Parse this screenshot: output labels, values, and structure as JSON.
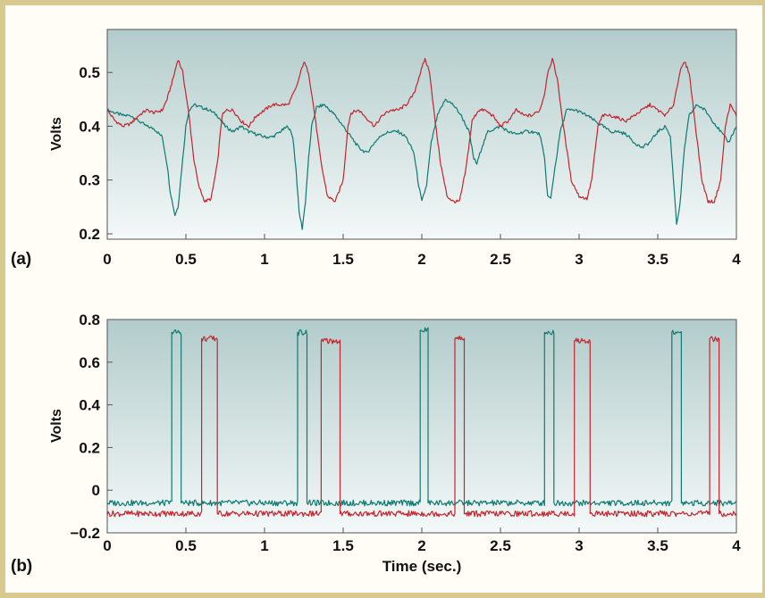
{
  "colors": {
    "teal": "#0e7a72",
    "red": "#c4252e",
    "frame": "#d8c98f",
    "plot_bg_top": "#b2cccb",
    "plot_bg_bottom": "#f4f8f8"
  },
  "chart_data": [
    {
      "id": "a",
      "type": "line",
      "panel_label": "(a)",
      "title": "",
      "xlabel": "",
      "ylabel": "Volts",
      "xlim": [
        0,
        4
      ],
      "ylim": [
        0.19,
        0.58
      ],
      "xticks": [
        "0",
        "0.5",
        "1",
        "1.5",
        "2",
        "2.5",
        "3",
        "3.5",
        "4"
      ],
      "xtick_values": [
        0,
        0.5,
        1,
        1.5,
        2,
        2.5,
        3,
        3.5,
        4
      ],
      "yticks": [
        "0.2",
        "0.3",
        "0.4",
        "0.5"
      ],
      "ytick_values": [
        0.2,
        0.3,
        0.4,
        0.5
      ],
      "grid": false,
      "series": [
        {
          "color": "#0e7a72",
          "points": [
            [
              0.0,
              0.43
            ],
            [
              0.05,
              0.425
            ],
            [
              0.1,
              0.42
            ],
            [
              0.15,
              0.42
            ],
            [
              0.2,
              0.41
            ],
            [
              0.25,
              0.4
            ],
            [
              0.3,
              0.395
            ],
            [
              0.35,
              0.38
            ],
            [
              0.38,
              0.33
            ],
            [
              0.4,
              0.28
            ],
            [
              0.43,
              0.235
            ],
            [
              0.45,
              0.25
            ],
            [
              0.48,
              0.34
            ],
            [
              0.5,
              0.4
            ],
            [
              0.52,
              0.43
            ],
            [
              0.55,
              0.44
            ],
            [
              0.6,
              0.435
            ],
            [
              0.65,
              0.43
            ],
            [
              0.7,
              0.42
            ],
            [
              0.75,
              0.4
            ],
            [
              0.8,
              0.39
            ],
            [
              0.85,
              0.4
            ],
            [
              0.9,
              0.39
            ],
            [
              0.95,
              0.385
            ],
            [
              1.0,
              0.38
            ],
            [
              1.05,
              0.38
            ],
            [
              1.1,
              0.39
            ],
            [
              1.15,
              0.4
            ],
            [
              1.18,
              0.38
            ],
            [
              1.2,
              0.32
            ],
            [
              1.22,
              0.24
            ],
            [
              1.24,
              0.21
            ],
            [
              1.26,
              0.26
            ],
            [
              1.28,
              0.34
            ],
            [
              1.3,
              0.4
            ],
            [
              1.33,
              0.435
            ],
            [
              1.38,
              0.44
            ],
            [
              1.45,
              0.42
            ],
            [
              1.5,
              0.4
            ],
            [
              1.55,
              0.38
            ],
            [
              1.6,
              0.36
            ],
            [
              1.65,
              0.35
            ],
            [
              1.7,
              0.37
            ],
            [
              1.75,
              0.385
            ],
            [
              1.8,
              0.39
            ],
            [
              1.85,
              0.39
            ],
            [
              1.9,
              0.38
            ],
            [
              1.95,
              0.35
            ],
            [
              1.98,
              0.29
            ],
            [
              2.0,
              0.26
            ],
            [
              2.03,
              0.29
            ],
            [
              2.06,
              0.37
            ],
            [
              2.1,
              0.42
            ],
            [
              2.15,
              0.45
            ],
            [
              2.2,
              0.44
            ],
            [
              2.25,
              0.42
            ],
            [
              2.3,
              0.39
            ],
            [
              2.33,
              0.34
            ],
            [
              2.35,
              0.33
            ],
            [
              2.38,
              0.36
            ],
            [
              2.42,
              0.39
            ],
            [
              2.5,
              0.4
            ],
            [
              2.55,
              0.39
            ],
            [
              2.6,
              0.385
            ],
            [
              2.65,
              0.39
            ],
            [
              2.7,
              0.39
            ],
            [
              2.75,
              0.385
            ],
            [
              2.78,
              0.34
            ],
            [
              2.8,
              0.27
            ],
            [
              2.82,
              0.265
            ],
            [
              2.84,
              0.31
            ],
            [
              2.88,
              0.39
            ],
            [
              2.92,
              0.43
            ],
            [
              2.98,
              0.43
            ],
            [
              3.05,
              0.42
            ],
            [
              3.1,
              0.41
            ],
            [
              3.15,
              0.4
            ],
            [
              3.2,
              0.39
            ],
            [
              3.25,
              0.39
            ],
            [
              3.3,
              0.385
            ],
            [
              3.35,
              0.37
            ],
            [
              3.4,
              0.36
            ],
            [
              3.45,
              0.37
            ],
            [
              3.5,
              0.39
            ],
            [
              3.55,
              0.4
            ],
            [
              3.58,
              0.38
            ],
            [
              3.6,
              0.3
            ],
            [
              3.62,
              0.22
            ],
            [
              3.64,
              0.25
            ],
            [
              3.67,
              0.36
            ],
            [
              3.7,
              0.42
            ],
            [
              3.75,
              0.44
            ],
            [
              3.8,
              0.43
            ],
            [
              3.85,
              0.41
            ],
            [
              3.9,
              0.39
            ],
            [
              3.95,
              0.37
            ],
            [
              4.0,
              0.4
            ]
          ]
        },
        {
          "color": "#c4252e",
          "points": [
            [
              0.0,
              0.43
            ],
            [
              0.05,
              0.41
            ],
            [
              0.1,
              0.4
            ],
            [
              0.15,
              0.405
            ],
            [
              0.2,
              0.42
            ],
            [
              0.25,
              0.43
            ],
            [
              0.3,
              0.425
            ],
            [
              0.35,
              0.43
            ],
            [
              0.38,
              0.45
            ],
            [
              0.42,
              0.49
            ],
            [
              0.45,
              0.525
            ],
            [
              0.48,
              0.5
            ],
            [
              0.52,
              0.42
            ],
            [
              0.55,
              0.34
            ],
            [
              0.58,
              0.29
            ],
            [
              0.62,
              0.26
            ],
            [
              0.66,
              0.265
            ],
            [
              0.7,
              0.33
            ],
            [
              0.73,
              0.42
            ],
            [
              0.76,
              0.43
            ],
            [
              0.8,
              0.43
            ],
            [
              0.85,
              0.41
            ],
            [
              0.9,
              0.4
            ],
            [
              0.95,
              0.42
            ],
            [
              1.0,
              0.43
            ],
            [
              1.05,
              0.44
            ],
            [
              1.1,
              0.44
            ],
            [
              1.15,
              0.44
            ],
            [
              1.2,
              0.47
            ],
            [
              1.25,
              0.52
            ],
            [
              1.28,
              0.5
            ],
            [
              1.32,
              0.42
            ],
            [
              1.36,
              0.33
            ],
            [
              1.4,
              0.27
            ],
            [
              1.45,
              0.26
            ],
            [
              1.5,
              0.3
            ],
            [
              1.53,
              0.4
            ],
            [
              1.55,
              0.425
            ],
            [
              1.6,
              0.43
            ],
            [
              1.65,
              0.415
            ],
            [
              1.7,
              0.4
            ],
            [
              1.75,
              0.42
            ],
            [
              1.8,
              0.43
            ],
            [
              1.85,
              0.43
            ],
            [
              1.9,
              0.44
            ],
            [
              1.95,
              0.46
            ],
            [
              1.98,
              0.49
            ],
            [
              2.02,
              0.525
            ],
            [
              2.05,
              0.5
            ],
            [
              2.08,
              0.42
            ],
            [
              2.12,
              0.33
            ],
            [
              2.16,
              0.27
            ],
            [
              2.2,
              0.26
            ],
            [
              2.24,
              0.26
            ],
            [
              2.28,
              0.32
            ],
            [
              2.32,
              0.41
            ],
            [
              2.36,
              0.43
            ],
            [
              2.4,
              0.43
            ],
            [
              2.45,
              0.42
            ],
            [
              2.5,
              0.4
            ],
            [
              2.55,
              0.41
            ],
            [
              2.6,
              0.43
            ],
            [
              2.65,
              0.42
            ],
            [
              2.7,
              0.42
            ],
            [
              2.75,
              0.43
            ],
            [
              2.78,
              0.46
            ],
            [
              2.8,
              0.5
            ],
            [
              2.83,
              0.525
            ],
            [
              2.86,
              0.49
            ],
            [
              2.9,
              0.4
            ],
            [
              2.95,
              0.3
            ],
            [
              3.0,
              0.27
            ],
            [
              3.05,
              0.265
            ],
            [
              3.08,
              0.3
            ],
            [
              3.12,
              0.4
            ],
            [
              3.15,
              0.42
            ],
            [
              3.2,
              0.42
            ],
            [
              3.25,
              0.415
            ],
            [
              3.3,
              0.41
            ],
            [
              3.35,
              0.42
            ],
            [
              3.4,
              0.43
            ],
            [
              3.45,
              0.44
            ],
            [
              3.5,
              0.43
            ],
            [
              3.55,
              0.42
            ],
            [
              3.6,
              0.44
            ],
            [
              3.64,
              0.5
            ],
            [
              3.67,
              0.52
            ],
            [
              3.7,
              0.5
            ],
            [
              3.74,
              0.4
            ],
            [
              3.78,
              0.3
            ],
            [
              3.82,
              0.26
            ],
            [
              3.86,
              0.26
            ],
            [
              3.9,
              0.3
            ],
            [
              3.93,
              0.4
            ],
            [
              3.96,
              0.44
            ],
            [
              4.0,
              0.42
            ]
          ]
        }
      ]
    },
    {
      "id": "b",
      "type": "line",
      "panel_label": "(b)",
      "title": "",
      "xlabel": "Time (sec.)",
      "ylabel": "Volts",
      "xlim": [
        0,
        4
      ],
      "ylim": [
        -0.2,
        0.8
      ],
      "xticks": [
        "0",
        "0.5",
        "1",
        "1.5",
        "2",
        "2.5",
        "3",
        "3.5",
        "4"
      ],
      "xtick_values": [
        0,
        0.5,
        1,
        1.5,
        2,
        2.5,
        3,
        3.5,
        4
      ],
      "yticks": [
        "−0.2",
        "0",
        "0.2",
        "0.4",
        "0.6",
        "0.8"
      ],
      "ytick_values": [
        -0.2,
        0,
        0.2,
        0.4,
        0.6,
        0.8
      ],
      "grid": false,
      "series": [
        {
          "color": "#0e7a72",
          "points": [
            [
              0.0,
              -0.06
            ],
            [
              0.4,
              -0.06
            ],
            [
              0.41,
              -0.06
            ],
            [
              0.41,
              0.74
            ],
            [
              0.47,
              0.74
            ],
            [
              0.47,
              -0.06
            ],
            [
              1.21,
              -0.06
            ],
            [
              1.21,
              0.74
            ],
            [
              1.27,
              0.74
            ],
            [
              1.27,
              -0.06
            ],
            [
              1.99,
              -0.06
            ],
            [
              1.99,
              0.75
            ],
            [
              2.04,
              0.75
            ],
            [
              2.04,
              -0.06
            ],
            [
              2.78,
              -0.06
            ],
            [
              2.78,
              0.74
            ],
            [
              2.84,
              0.74
            ],
            [
              2.84,
              -0.06
            ],
            [
              3.59,
              -0.06
            ],
            [
              3.59,
              0.74
            ],
            [
              3.65,
              0.74
            ],
            [
              3.65,
              -0.06
            ],
            [
              4.0,
              -0.06
            ]
          ]
        },
        {
          "color": "#c4252e",
          "points": [
            [
              0.0,
              -0.11
            ],
            [
              0.6,
              -0.11
            ],
            [
              0.6,
              0.71
            ],
            [
              0.7,
              0.71
            ],
            [
              0.7,
              -0.11
            ],
            [
              1.36,
              -0.11
            ],
            [
              1.36,
              0.7
            ],
            [
              1.48,
              0.7
            ],
            [
              1.48,
              -0.11
            ],
            [
              2.21,
              -0.11
            ],
            [
              2.21,
              0.71
            ],
            [
              2.27,
              0.71
            ],
            [
              2.27,
              -0.11
            ],
            [
              2.97,
              -0.11
            ],
            [
              2.97,
              0.7
            ],
            [
              3.07,
              0.7
            ],
            [
              3.07,
              -0.11
            ],
            [
              3.83,
              -0.11
            ],
            [
              3.83,
              0.71
            ],
            [
              3.89,
              0.71
            ],
            [
              3.89,
              -0.11
            ],
            [
              4.0,
              -0.11
            ]
          ]
        }
      ]
    }
  ]
}
